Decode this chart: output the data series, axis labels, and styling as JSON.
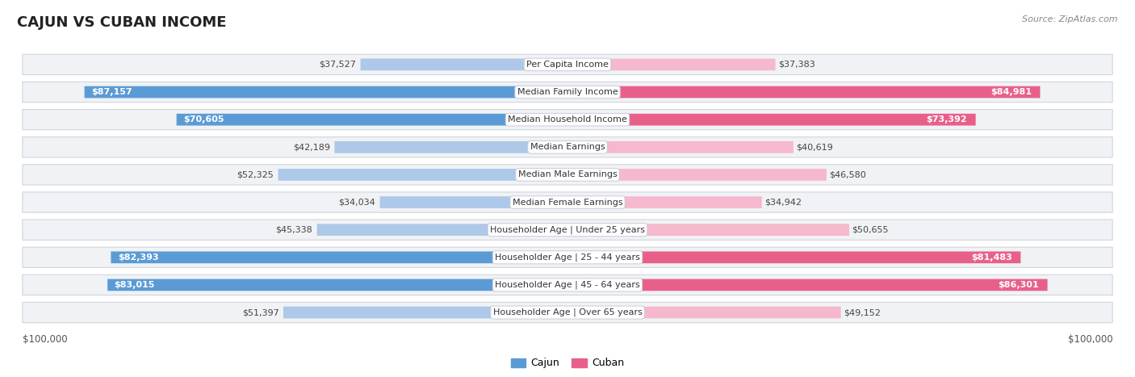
{
  "title": "CAJUN VS CUBAN INCOME",
  "source": "Source: ZipAtlas.com",
  "categories": [
    "Per Capita Income",
    "Median Family Income",
    "Median Household Income",
    "Median Earnings",
    "Median Male Earnings",
    "Median Female Earnings",
    "Householder Age | Under 25 years",
    "Householder Age | 25 - 44 years",
    "Householder Age | 45 - 64 years",
    "Householder Age | Over 65 years"
  ],
  "cajun_values": [
    37527,
    87157,
    70605,
    42189,
    52325,
    34034,
    45338,
    82393,
    83015,
    51397
  ],
  "cuban_values": [
    37383,
    84981,
    73392,
    40619,
    46580,
    34942,
    50655,
    81483,
    86301,
    49152
  ],
  "max_value": 100000,
  "cajun_color_light": "#adc8e8",
  "cajun_color_dark": "#5b9bd5",
  "cuban_color_light": "#f5b8cd",
  "cuban_color_dark": "#e8608a",
  "bg_color": "#ffffff",
  "row_bg_color": "#f0f2f5",
  "row_border_color": "#d0d5dd",
  "threshold_dark": 65000,
  "legend_cajun": "Cajun",
  "legend_cuban": "Cuban",
  "x_tick_left": "$100,000",
  "x_tick_right": "$100,000",
  "title_fontsize": 13,
  "label_fontsize": 8,
  "value_fontsize": 8
}
